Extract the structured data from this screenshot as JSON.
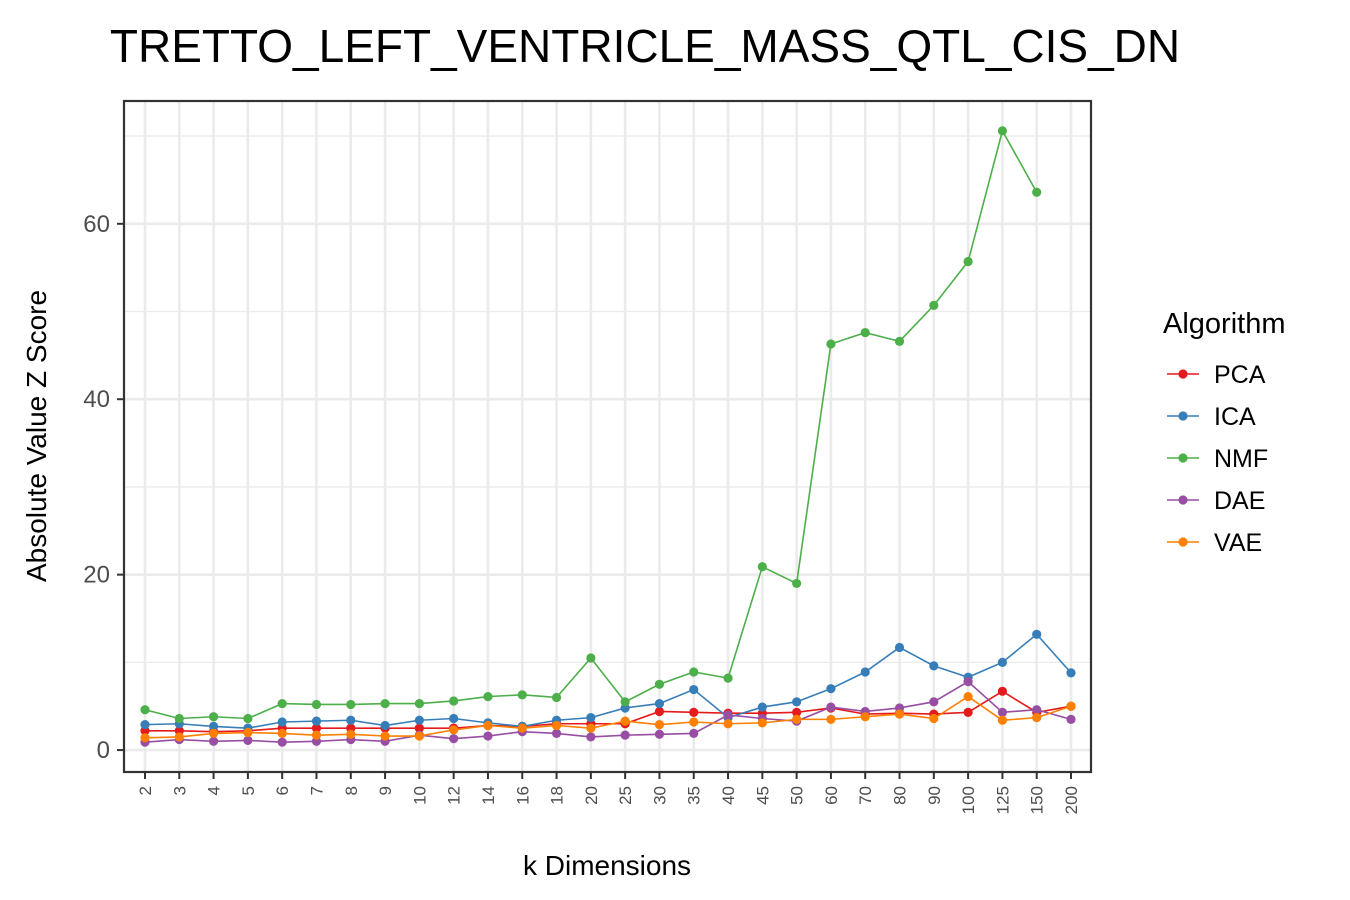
{
  "chart_data": {
    "type": "line",
    "title": "TRETTO_LEFT_VENTRICLE_MASS_QTL_CIS_DN",
    "xlabel": "k Dimensions",
    "ylabel": "Absolute Value Z Score",
    "categories": [
      "2",
      "3",
      "4",
      "5",
      "6",
      "7",
      "8",
      "9",
      "10",
      "12",
      "14",
      "16",
      "18",
      "20",
      "25",
      "30",
      "35",
      "40",
      "45",
      "50",
      "60",
      "70",
      "80",
      "90",
      "100",
      "125",
      "150",
      "200"
    ],
    "ylim": [
      -2.5,
      74
    ],
    "yticks": [
      0,
      20,
      40,
      60
    ],
    "grid": true,
    "legend": {
      "title": "Algorithm",
      "position": "right"
    },
    "series": [
      {
        "name": "PCA",
        "color": "#E41A1C",
        "values": [
          2.2,
          2.2,
          2.1,
          2.2,
          2.5,
          2.5,
          2.5,
          2.5,
          2.5,
          2.5,
          2.8,
          2.7,
          3.0,
          3.0,
          3.0,
          4.4,
          4.3,
          4.2,
          4.2,
          4.3,
          4.8,
          4.1,
          4.2,
          4.1,
          4.3,
          6.7,
          4.3,
          5.0
        ]
      },
      {
        "name": "ICA",
        "color": "#377EB8",
        "values": [
          2.9,
          3.0,
          2.7,
          2.5,
          3.2,
          3.3,
          3.4,
          2.8,
          3.4,
          3.6,
          3.1,
          2.7,
          3.4,
          3.7,
          4.8,
          5.3,
          6.9,
          3.7,
          4.9,
          5.5,
          7.0,
          8.9,
          11.7,
          9.6,
          8.3,
          10.0,
          13.2,
          8.8
        ]
      },
      {
        "name": "NMF",
        "color": "#4DAF4A",
        "values": [
          4.6,
          3.6,
          3.8,
          3.6,
          5.3,
          5.2,
          5.2,
          5.3,
          5.3,
          5.6,
          6.1,
          6.3,
          6.0,
          10.5,
          5.5,
          7.5,
          8.9,
          8.2,
          20.9,
          19.0,
          46.3,
          47.6,
          46.6,
          50.7,
          55.7,
          70.6,
          63.6,
          null
        ]
      },
      {
        "name": "DAE",
        "color": "#984EA3",
        "values": [
          0.9,
          1.2,
          1.0,
          1.1,
          0.9,
          1.0,
          1.2,
          1.0,
          1.7,
          1.3,
          1.6,
          2.1,
          1.9,
          1.5,
          1.7,
          1.8,
          1.9,
          4.0,
          3.6,
          3.3,
          4.9,
          4.4,
          4.8,
          5.5,
          7.8,
          4.3,
          4.6,
          3.5
        ]
      },
      {
        "name": "VAE",
        "color": "#FF7F00",
        "values": [
          1.4,
          1.5,
          1.9,
          2.0,
          1.9,
          1.7,
          1.8,
          1.6,
          1.6,
          2.3,
          2.8,
          2.5,
          2.8,
          2.5,
          3.3,
          2.9,
          3.2,
          3.0,
          3.1,
          3.5,
          3.5,
          3.8,
          4.1,
          3.6,
          6.1,
          3.4,
          3.7,
          5.0
        ]
      }
    ]
  }
}
